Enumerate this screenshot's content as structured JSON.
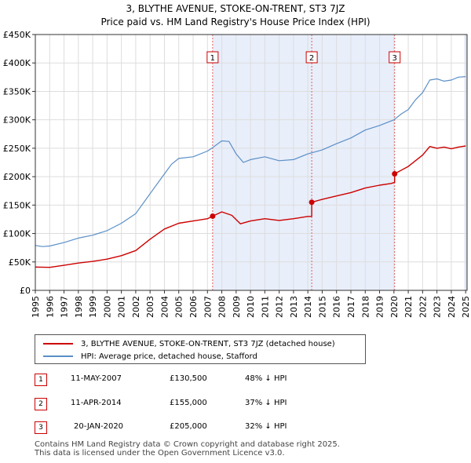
{
  "title": "3, BLYTHE AVENUE, STOKE-ON-TRENT, ST3 7JZ",
  "subtitle": "Price paid vs. HM Land Registry's House Price Index (HPI)",
  "colors": {
    "property": "#cc0000",
    "hpi": "#5b8fc7",
    "shade": "#e8eefa",
    "vline": "#e06060"
  },
  "chart_data": {
    "type": "line",
    "x_ticks": [
      "1995",
      "1996",
      "1997",
      "1998",
      "1999",
      "2000",
      "2001",
      "2002",
      "2003",
      "2004",
      "2005",
      "2006",
      "2007",
      "2008",
      "2009",
      "2010",
      "2011",
      "2012",
      "2013",
      "2014",
      "2015",
      "2016",
      "2017",
      "2018",
      "2019",
      "2020",
      "2021",
      "2022",
      "2023",
      "2024",
      "2025"
    ],
    "y_ticks": [
      "£0",
      "£50K",
      "£100K",
      "£150K",
      "£200K",
      "£250K",
      "£300K",
      "£350K",
      "£400K",
      "£450K"
    ],
    "xlim": [
      1995.0,
      2025.1
    ],
    "ylim": [
      0,
      450000
    ],
    "grid": true,
    "series": [
      {
        "name": "3, BLYTHE AVENUE, STOKE-ON-TRENT, ST3 7JZ (detached house)",
        "color": "#cc0000",
        "points": [
          [
            1995.0,
            41000
          ],
          [
            1996.0,
            40500
          ],
          [
            1997.0,
            44000
          ],
          [
            1998.0,
            48000
          ],
          [
            1999.0,
            51000
          ],
          [
            2000.0,
            55000
          ],
          [
            2001.0,
            61000
          ],
          [
            2002.0,
            70000
          ],
          [
            2003.0,
            90000
          ],
          [
            2004.0,
            108000
          ],
          [
            2005.0,
            118000
          ],
          [
            2006.0,
            122000
          ],
          [
            2007.0,
            126000
          ],
          [
            2007.36,
            130500
          ],
          [
            2008.0,
            138000
          ],
          [
            2008.7,
            132000
          ],
          [
            2009.3,
            117000
          ],
          [
            2010.0,
            122000
          ],
          [
            2011.0,
            126000
          ],
          [
            2012.0,
            123000
          ],
          [
            2013.0,
            126000
          ],
          [
            2014.0,
            130000
          ],
          [
            2014.27,
            130000
          ],
          [
            2014.27,
            155000
          ],
          [
            2015.0,
            160000
          ],
          [
            2016.0,
            166000
          ],
          [
            2017.0,
            172000
          ],
          [
            2018.0,
            180000
          ],
          [
            2019.0,
            185000
          ],
          [
            2019.8,
            188000
          ],
          [
            2020.05,
            190000
          ],
          [
            2020.05,
            205000
          ],
          [
            2021.0,
            218000
          ],
          [
            2022.0,
            238000
          ],
          [
            2022.5,
            253000
          ],
          [
            2023.0,
            250000
          ],
          [
            2023.5,
            252000
          ],
          [
            2024.0,
            249000
          ],
          [
            2024.5,
            252000
          ],
          [
            2025.0,
            254000
          ]
        ]
      },
      {
        "name": "HPI: Average price, detached house, Stafford",
        "color": "#5b8fc7",
        "points": [
          [
            1995.0,
            79000
          ],
          [
            1995.5,
            77000
          ],
          [
            1996.0,
            78000
          ],
          [
            1997.0,
            84000
          ],
          [
            1998.0,
            92000
          ],
          [
            1999.0,
            97000
          ],
          [
            2000.0,
            105000
          ],
          [
            2001.0,
            118000
          ],
          [
            2002.0,
            135000
          ],
          [
            2003.0,
            170000
          ],
          [
            2004.0,
            205000
          ],
          [
            2004.5,
            222000
          ],
          [
            2005.0,
            232000
          ],
          [
            2006.0,
            235000
          ],
          [
            2007.0,
            245000
          ],
          [
            2007.36,
            251000
          ],
          [
            2008.0,
            263000
          ],
          [
            2008.5,
            262000
          ],
          [
            2009.0,
            240000
          ],
          [
            2009.5,
            225000
          ],
          [
            2010.0,
            230000
          ],
          [
            2011.0,
            235000
          ],
          [
            2012.0,
            228000
          ],
          [
            2013.0,
            230000
          ],
          [
            2014.0,
            240000
          ],
          [
            2015.0,
            247000
          ],
          [
            2016.0,
            258000
          ],
          [
            2017.0,
            268000
          ],
          [
            2018.0,
            282000
          ],
          [
            2019.0,
            290000
          ],
          [
            2020.0,
            300000
          ],
          [
            2020.5,
            310000
          ],
          [
            2021.0,
            318000
          ],
          [
            2021.5,
            335000
          ],
          [
            2022.0,
            348000
          ],
          [
            2022.5,
            370000
          ],
          [
            2023.0,
            372000
          ],
          [
            2023.5,
            368000
          ],
          [
            2024.0,
            370000
          ],
          [
            2024.5,
            375000
          ],
          [
            2025.0,
            376000
          ]
        ]
      }
    ],
    "markers": [
      {
        "label": "1",
        "x": 2007.36,
        "y": 130500
      },
      {
        "label": "2",
        "x": 2014.27,
        "y": 155000
      },
      {
        "label": "3",
        "x": 2020.05,
        "y": 205000
      }
    ],
    "shaded_ranges": [
      [
        2007.36,
        2014.27
      ],
      [
        2014.27,
        2020.05
      ],
      [
        2024.9,
        2025.1
      ]
    ]
  },
  "legend": {
    "property_label": "3, BLYTHE AVENUE, STOKE-ON-TRENT, ST3 7JZ (detached house)",
    "hpi_label": "HPI: Average price, detached house, Stafford"
  },
  "transactions": [
    {
      "badge": "1",
      "date": "11-MAY-2007",
      "price": "£130,500",
      "hpi": "48% ↓ HPI"
    },
    {
      "badge": "2",
      "date": "11-APR-2014",
      "price": "£155,000",
      "hpi": "37% ↓ HPI"
    },
    {
      "badge": "3",
      "date": "20-JAN-2020",
      "price": "£205,000",
      "hpi": "32% ↓ HPI"
    }
  ],
  "footer": {
    "line1": "Contains HM Land Registry data © Crown copyright and database right 2025.",
    "line2": "This data is licensed under the Open Government Licence v3.0."
  }
}
